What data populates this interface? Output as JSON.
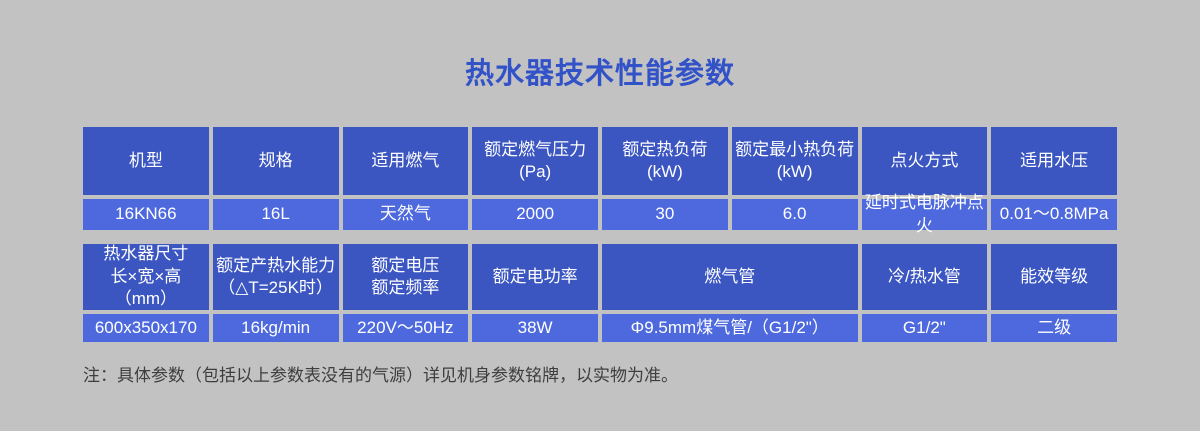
{
  "title": "热水器技术性能参数",
  "note": "注：具体参数（包括以上参数表没有的气源）详见机身参数铭牌，以实物为准。",
  "colors": {
    "background": "#c2c2c3",
    "header_blue": "#3b56c1",
    "row_blue": "#4d69dd",
    "title_blue": "#3252c8",
    "note_text": "#3e3e3e"
  },
  "table1": {
    "columns": [
      {
        "header": "机型",
        "value": "16KN66"
      },
      {
        "header": "规格",
        "value": "16L"
      },
      {
        "header": "适用燃气",
        "value": "天然气"
      },
      {
        "header": "额定燃气压力\n(Pa)",
        "value": "2000"
      },
      {
        "header": "额定热负荷\n(kW)",
        "value": "30"
      },
      {
        "header": "额定最小热负荷\n(kW)",
        "value": "6.0"
      },
      {
        "header": "点火方式",
        "value": "延时式电脉冲点火"
      },
      {
        "header": "适用水压",
        "value": "0.01～0.8MPa"
      }
    ]
  },
  "table2": {
    "columns": [
      {
        "header": "热水器尺寸\n长×宽×高（mm）",
        "value": "600x350x170",
        "span": 1
      },
      {
        "header": "额定产热水能力\n（△T=25K时）",
        "value": "16kg/min",
        "span": 1
      },
      {
        "header": "额定电压\n额定频率",
        "value": "220V～50Hz",
        "span": 1
      },
      {
        "header": "额定电功率",
        "value": "38W",
        "span": 1
      },
      {
        "header": "燃气管",
        "value": "Φ9.5mm煤气管/（G1/2\"）",
        "span": 2
      },
      {
        "header": "冷/热水管",
        "value": "G1/2\"",
        "span": 1
      },
      {
        "header": "能效等级",
        "value": "二级",
        "span": 1
      }
    ]
  }
}
